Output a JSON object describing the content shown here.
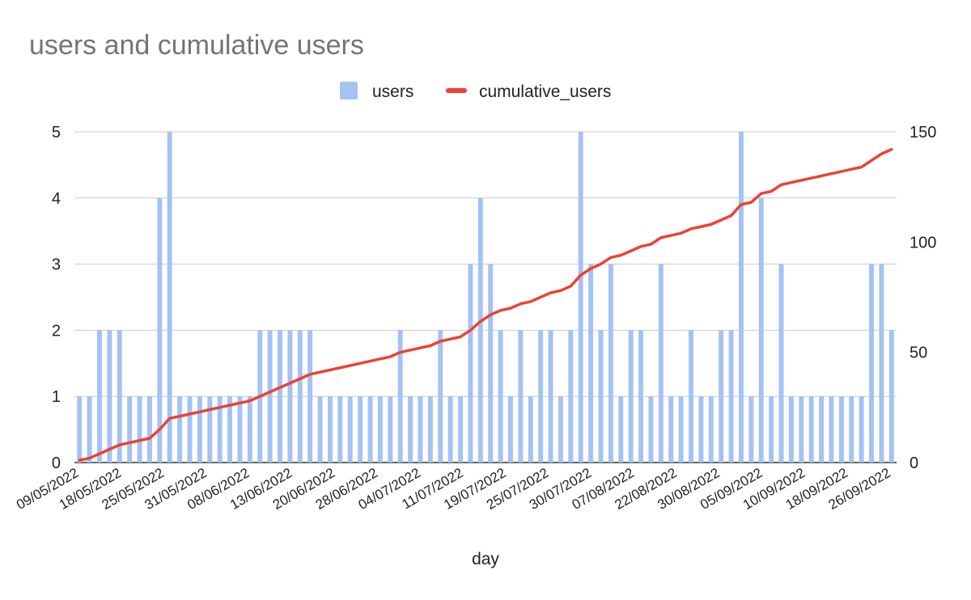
{
  "chart_data": {
    "type": "bar+line",
    "title": "users and cumulative users",
    "xlabel": "day",
    "ylabel_left": "",
    "ylabel_right": "",
    "legend": [
      {
        "name": "users",
        "color": "#a4c2f4",
        "shape": "square"
      },
      {
        "name": "cumulative_users",
        "color": "#ea4335",
        "shape": "line"
      }
    ],
    "ylim_left": [
      0,
      5
    ],
    "ylim_right": [
      0,
      150
    ],
    "yticks_left": [
      0,
      1,
      2,
      3,
      4,
      5
    ],
    "yticks_right": [
      0,
      50,
      100,
      150
    ],
    "grid": true,
    "x_tick_labels": [
      "09/05/2022",
      "18/05/2022",
      "25/05/2022",
      "31/05/2022",
      "08/06/2022",
      "13/06/2022",
      "20/06/2022",
      "28/06/2022",
      "04/07/2022",
      "11/07/2022",
      "19/07/2022",
      "25/07/2022",
      "30/07/2022",
      "07/08/2022",
      "22/08/2022",
      "30/08/2022",
      "05/09/2022",
      "10/09/2022",
      "18/09/2022",
      "26/09/2022"
    ],
    "series": [
      {
        "name": "users",
        "axis": "left",
        "type": "bar",
        "color": "#a4c2f4",
        "values": [
          1,
          1,
          2,
          2,
          2,
          1,
          1,
          1,
          4,
          5,
          1,
          1,
          1,
          1,
          1,
          1,
          1,
          1,
          2,
          2,
          2,
          2,
          2,
          2,
          1,
          1,
          1,
          1,
          1,
          1,
          1,
          1,
          2,
          1,
          1,
          1,
          2,
          1,
          1,
          3,
          4,
          3,
          2,
          1,
          2,
          1,
          2,
          2,
          1,
          2,
          5,
          3,
          2,
          3,
          1,
          2,
          2,
          1,
          3,
          1,
          1,
          2,
          1,
          1,
          2,
          2,
          5,
          1,
          4,
          1,
          3,
          1,
          1,
          1,
          1,
          1,
          1,
          1,
          1,
          3,
          3,
          2
        ]
      },
      {
        "name": "cumulative_users",
        "axis": "right",
        "type": "line",
        "color": "#ea4335",
        "values": [
          1,
          2,
          4,
          6,
          8,
          9,
          10,
          11,
          15,
          20,
          21,
          22,
          23,
          24,
          25,
          26,
          27,
          28,
          30,
          32,
          34,
          36,
          38,
          40,
          41,
          42,
          43,
          44,
          45,
          46,
          47,
          48,
          50,
          51,
          52,
          53,
          55,
          56,
          57,
          60,
          64,
          67,
          69,
          70,
          72,
          73,
          75,
          77,
          78,
          80,
          85,
          88,
          90,
          93,
          94,
          96,
          98,
          99,
          102,
          103,
          104,
          106,
          107,
          108,
          110,
          112,
          117,
          118,
          122,
          123,
          126,
          127,
          128,
          129,
          130,
          131,
          132,
          133,
          134,
          137,
          140,
          142
        ]
      }
    ]
  }
}
